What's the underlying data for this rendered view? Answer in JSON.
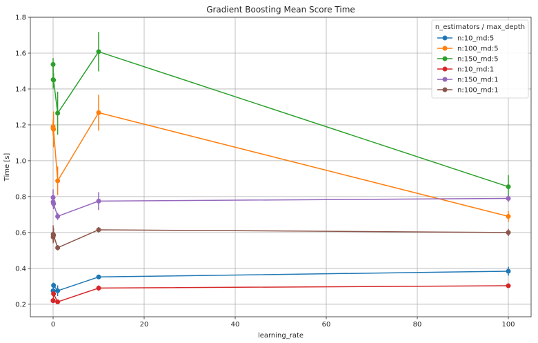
{
  "chart_data": {
    "type": "line",
    "title": "Gradient Boosting Mean Score Time",
    "xlabel": "learning_rate",
    "ylabel": "Time [s]",
    "xlim": [
      -5,
      105
    ],
    "ylim": [
      0.13,
      1.8
    ],
    "xticks": [
      0,
      20,
      40,
      60,
      80,
      100
    ],
    "yticks": [
      0.2,
      0.4,
      0.6,
      0.8,
      1.0,
      1.2,
      1.4,
      1.6,
      1.8
    ],
    "grid": true,
    "legend": {
      "title": "n_estimators / max_depth",
      "placement": "top-right"
    },
    "x": [
      0.001,
      0.01,
      0.1,
      1,
      10,
      100
    ],
    "series": [
      {
        "name": "n:10_md:5",
        "color": "#1f77b4",
        "values": [
          0.275,
          0.275,
          0.305,
          0.275,
          0.352,
          0.384
        ],
        "errors": [
          0.01,
          0.01,
          0.015,
          0.03,
          0.012,
          0.025
        ]
      },
      {
        "name": "n:100_md:5",
        "color": "#ff7f0e",
        "values": [
          1.19,
          1.18,
          1.175,
          0.888,
          1.268,
          0.69
        ],
        "errors": [
          0.04,
          0.04,
          0.1,
          0.08,
          0.1,
          0.03
        ]
      },
      {
        "name": "n:150_md:5",
        "color": "#2ca02c",
        "values": [
          1.537,
          1.452,
          1.45,
          1.265,
          1.608,
          0.855
        ],
        "errors": [
          0.035,
          0.05,
          0.04,
          0.12,
          0.11,
          0.065
        ]
      },
      {
        "name": "n:10_md:1",
        "color": "#d62728",
        "values": [
          0.22,
          0.22,
          0.258,
          0.213,
          0.29,
          0.303
        ],
        "errors": [
          0.01,
          0.01,
          0.015,
          0.01,
          0.015,
          0.01
        ]
      },
      {
        "name": "n:150_md:1",
        "color": "#9467bd",
        "values": [
          0.795,
          0.77,
          0.76,
          0.69,
          0.775,
          0.79
        ],
        "errors": [
          0.045,
          0.03,
          0.03,
          0.02,
          0.05,
          0.02
        ]
      },
      {
        "name": "n:100_md:1",
        "color": "#8c564b",
        "values": [
          0.575,
          0.59,
          0.585,
          0.515,
          0.615,
          0.6
        ],
        "errors": [
          0.02,
          0.05,
          0.04,
          0.015,
          0.015,
          0.02
        ]
      }
    ]
  }
}
